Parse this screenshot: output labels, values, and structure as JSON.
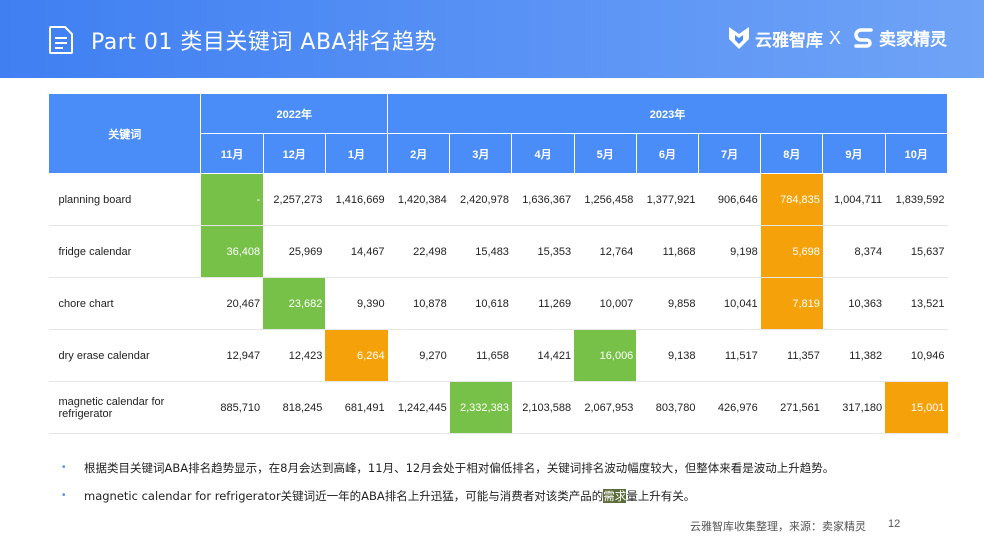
{
  "header": {
    "title": "Part 01 类目关键词 ABA排名趋势",
    "brand_left": "云雅智库",
    "separator": "X",
    "brand_right": "卖家精灵"
  },
  "table": {
    "keyword_header": "关键词",
    "year_2022": "2022年",
    "year_2023": "2023年",
    "months": [
      "11月",
      "12月",
      "1月",
      "2月",
      "3月",
      "4月",
      "5月",
      "6月",
      "7月",
      "8月",
      "9月",
      "10月"
    ],
    "rows": [
      {
        "keyword": "planning board",
        "values": [
          "-",
          "2,257,273",
          "1,416,669",
          "1,420,384",
          "2,420,978",
          "1,636,367",
          "1,256,458",
          "1,377,921",
          "906,646",
          "784,835",
          "1,004,711",
          "1,839,592"
        ]
      },
      {
        "keyword": "fridge calendar",
        "values": [
          "36,408",
          "25,969",
          "14,467",
          "22,498",
          "15,483",
          "15,353",
          "12,764",
          "11,868",
          "9,198",
          "5,698",
          "8,374",
          "15,637"
        ]
      },
      {
        "keyword": "chore chart",
        "values": [
          "20,467",
          "23,682",
          "9,390",
          "10,878",
          "10,618",
          "11,269",
          "10,007",
          "9,858",
          "10,041",
          "7,819",
          "10,363",
          "13,521"
        ]
      },
      {
        "keyword": "dry erase calendar",
        "values": [
          "12,947",
          "12,423",
          "6,264",
          "9,270",
          "11,658",
          "14,421",
          "16,006",
          "9,138",
          "11,517",
          "11,357",
          "11,382",
          "10,946"
        ]
      },
      {
        "keyword": "magnetic calendar for refrigerator",
        "values": [
          "885,710",
          "818,245",
          "681,491",
          "1,242,445",
          "2,332,383",
          "2,103,588",
          "2,067,953",
          "803,780",
          "426,976",
          "271,561",
          "317,180",
          "15,001"
        ]
      }
    ]
  },
  "bullets": {
    "b1": "根据类目关键词ABA排名趋势显示，在8月会达到高峰，11月、12月会处于相对偏低排名，关键词排名波动幅度较大，但整体来看是波动上升趋势。",
    "b2_pre": "magnetic calendar for refrigerator关键词近一年的ABA排名上升迅猛，可能与消费者对该类产品的",
    "b2_hl": "需求",
    "b2_post": "量上升有关。"
  },
  "footer": {
    "source": "云雅智库收集整理，来源：卖家精灵",
    "page": "12"
  },
  "colors": {
    "header_blue": "#4b8df8",
    "highlight_green": "#77c148",
    "highlight_orange": "#f5a20a"
  }
}
